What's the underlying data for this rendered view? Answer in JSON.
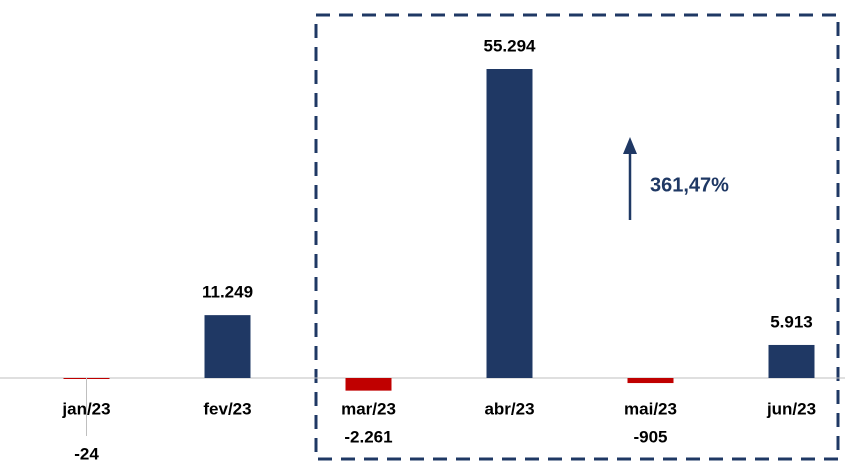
{
  "chart_data": {
    "type": "bar",
    "categories": [
      "jan/23",
      "fev/23",
      "mar/23",
      "abr/23",
      "mai/23",
      "jun/23"
    ],
    "values": [
      -24,
      11249,
      -2261,
      55294,
      -905,
      5913
    ],
    "value_labels": [
      "-24",
      "11.249",
      "-2.261",
      "55.294",
      "-905",
      "5.913"
    ],
    "colors": [
      "#c00000",
      "#1f3864",
      "#c00000",
      "#1f3864",
      "#c00000",
      "#1f3864"
    ],
    "annotation": "361,47%"
  }
}
